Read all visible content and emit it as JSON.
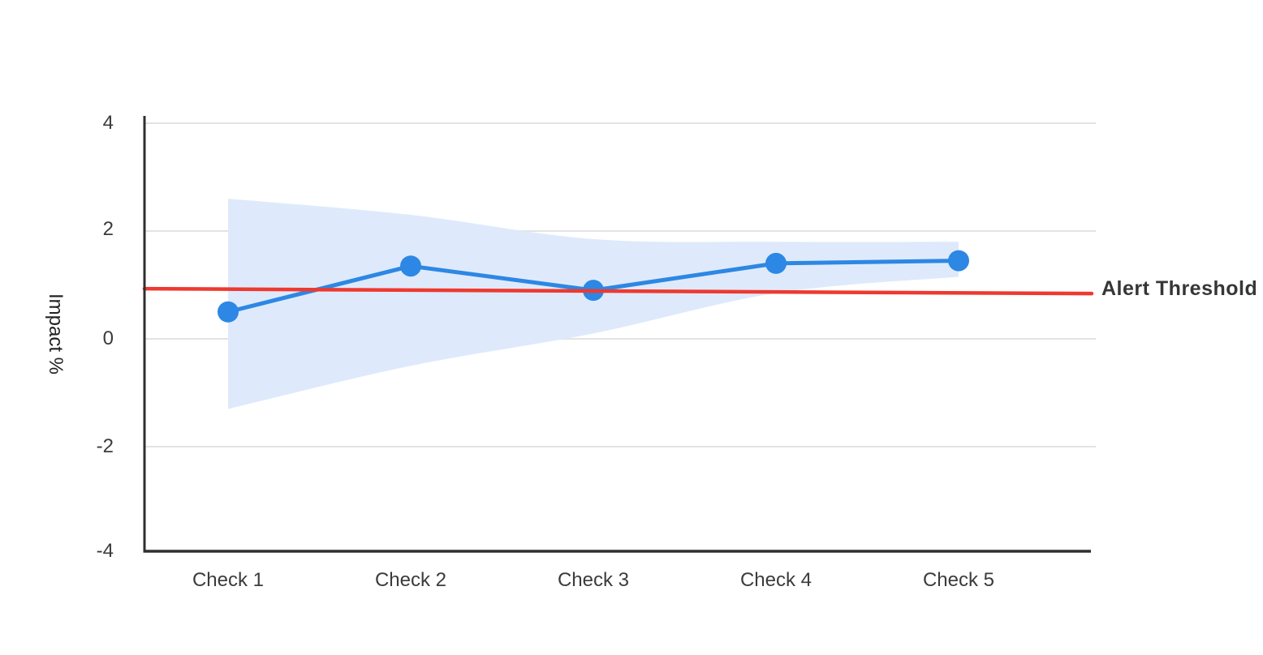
{
  "chart_data": {
    "type": "line",
    "title": "",
    "xlabel": "",
    "ylabel": "Impact %",
    "categories": [
      "Check 1",
      "Check 2",
      "Check 3",
      "Check 4",
      "Check 5"
    ],
    "series": [
      {
        "name": "Impact",
        "values": [
          0.5,
          1.35,
          0.9,
          1.4,
          1.45
        ]
      }
    ],
    "confidence_band": {
      "upper": [
        2.6,
        2.3,
        1.85,
        1.8,
        1.8
      ],
      "lower": [
        -1.3,
        -0.5,
        0.1,
        0.85,
        1.15
      ]
    },
    "threshold": {
      "label": "Alert Threshold",
      "value": 0.9,
      "start_value": 0.93,
      "end_value": 0.84
    },
    "yticks": [
      4,
      2,
      0,
      -2,
      -4
    ],
    "ytick_labels": [
      "4",
      "2",
      "0",
      "-2",
      "-4"
    ],
    "ylim": [
      -4,
      4
    ],
    "grid": "horizontal-only",
    "legend_position": "none",
    "colors": {
      "line": "#2d87e4",
      "marker": "#2d87e4",
      "band": "#deeafb",
      "threshold": "#ee3930",
      "grid": "#e3e3e3",
      "axis": "#2f2f2f",
      "text": "#3b3b3b"
    }
  }
}
